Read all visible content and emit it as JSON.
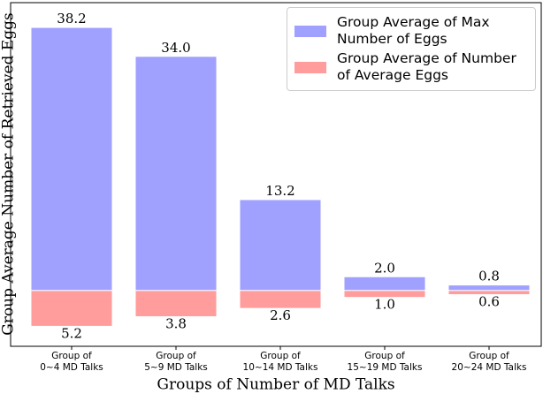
{
  "chart_data": {
    "type": "bar",
    "x_label": "Groups of Number of MD Talks",
    "y_label": "Group Average Number of Retrieved Eggs",
    "categories": [
      [
        "Group of",
        "0~4 MD Talks"
      ],
      [
        "Group of",
        "5~9 MD Talks"
      ],
      [
        "Group of",
        "10~14 MD Talks"
      ],
      [
        "Group of",
        "15~19 MD Talks"
      ],
      [
        "Group of",
        "20~24 MD Talks"
      ]
    ],
    "series": [
      {
        "name": "Group Average of Max Number of Eggs",
        "color": "#a0a0ff",
        "values": [
          38.2,
          34.0,
          13.2,
          2.0,
          0.8
        ],
        "value_labels": [
          "38.2",
          "34.0",
          "13.2",
          "2.0",
          "0.8"
        ]
      },
      {
        "name": "Group Average of Number of Average Eggs",
        "color": "#ff9c9c",
        "values": [
          5.2,
          3.8,
          2.6,
          1.0,
          0.6
        ],
        "value_labels": [
          "5.2",
          "3.8",
          "2.6",
          "1.0",
          "0.6"
        ],
        "downward": true
      }
    ],
    "ylim": [
      -8.1,
      41.8
    ],
    "legend": "upper right"
  }
}
